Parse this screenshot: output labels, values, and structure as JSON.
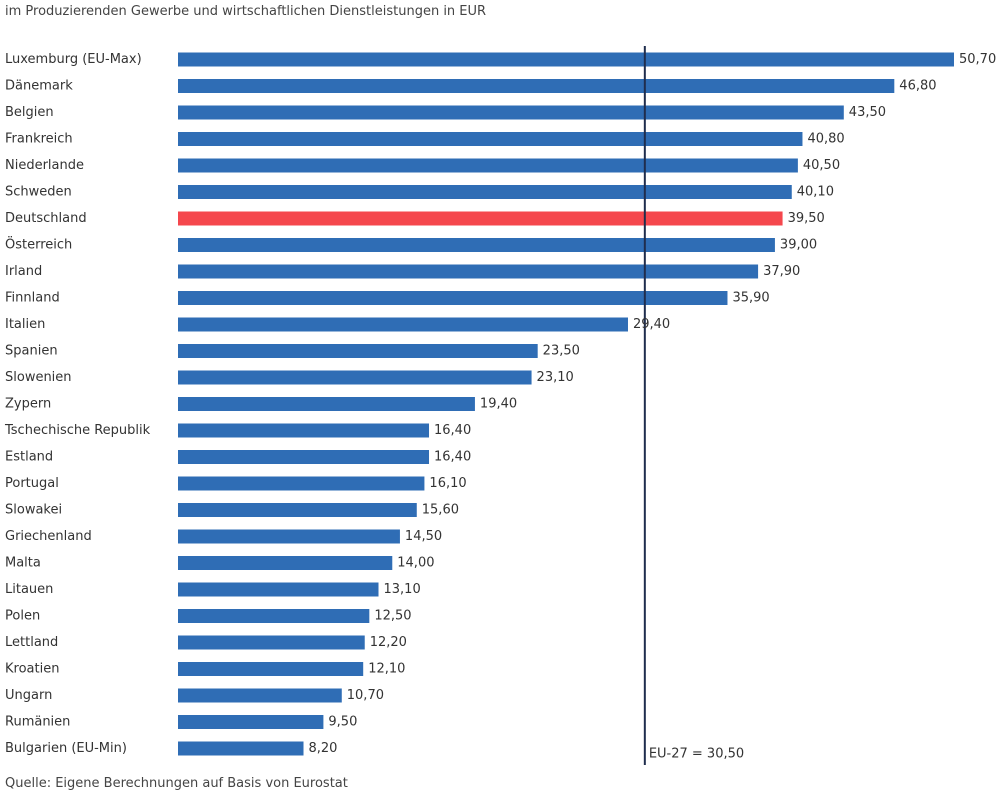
{
  "chart_data": {
    "type": "bar",
    "orientation": "horizontal",
    "subtitle": "im Produzierenden Gewerbe und wirtschaftlichen Dienstleistungen in EUR",
    "source": "Quelle: Eigene Berechnungen auf Basis von Eurostat",
    "categories": [
      "Luxemburg (EU-Max)",
      "Dänemark",
      "Belgien",
      "Frankreich",
      "Niederlande",
      "Schweden",
      "Deutschland",
      "Österreich",
      "Irland",
      "Finnland",
      "Italien",
      "Spanien",
      "Slowenien",
      "Zypern",
      "Tschechische Republik",
      "Estland",
      "Portugal",
      "Slowakei",
      "Griechenland",
      "Malta",
      "Litauen",
      "Polen",
      "Lettland",
      "Kroatien",
      "Ungarn",
      "Rumänien",
      "Bulgarien (EU-Min)"
    ],
    "values": [
      50.7,
      46.8,
      43.5,
      40.8,
      40.5,
      40.1,
      39.5,
      39.0,
      37.9,
      35.9,
      29.4,
      23.5,
      23.1,
      19.4,
      16.4,
      16.4,
      16.1,
      15.6,
      14.5,
      14.0,
      13.1,
      12.5,
      12.2,
      12.1,
      10.7,
      9.5,
      8.2
    ],
    "value_labels": [
      "50,70",
      "46,80",
      "43,50",
      "40,80",
      "40,50",
      "40,10",
      "39,50",
      "39,00",
      "37,90",
      "35,90",
      "29,40",
      "23,50",
      "23,10",
      "19,40",
      "16,40",
      "16,40",
      "16,10",
      "15,60",
      "14,50",
      "14,00",
      "13,10",
      "12,50",
      "12,20",
      "12,10",
      "10,70",
      "9,50",
      "8,20"
    ],
    "highlight": "Deutschland",
    "reference_line": {
      "value": 30.5,
      "label": "EU-27 = 30,50"
    },
    "xlim": [
      0,
      50.7
    ],
    "colors": {
      "bar": "#2f6db5",
      "highlight": "#f5474d",
      "reference_line": "#1f2d4d"
    },
    "grid": false,
    "legend": "none"
  }
}
